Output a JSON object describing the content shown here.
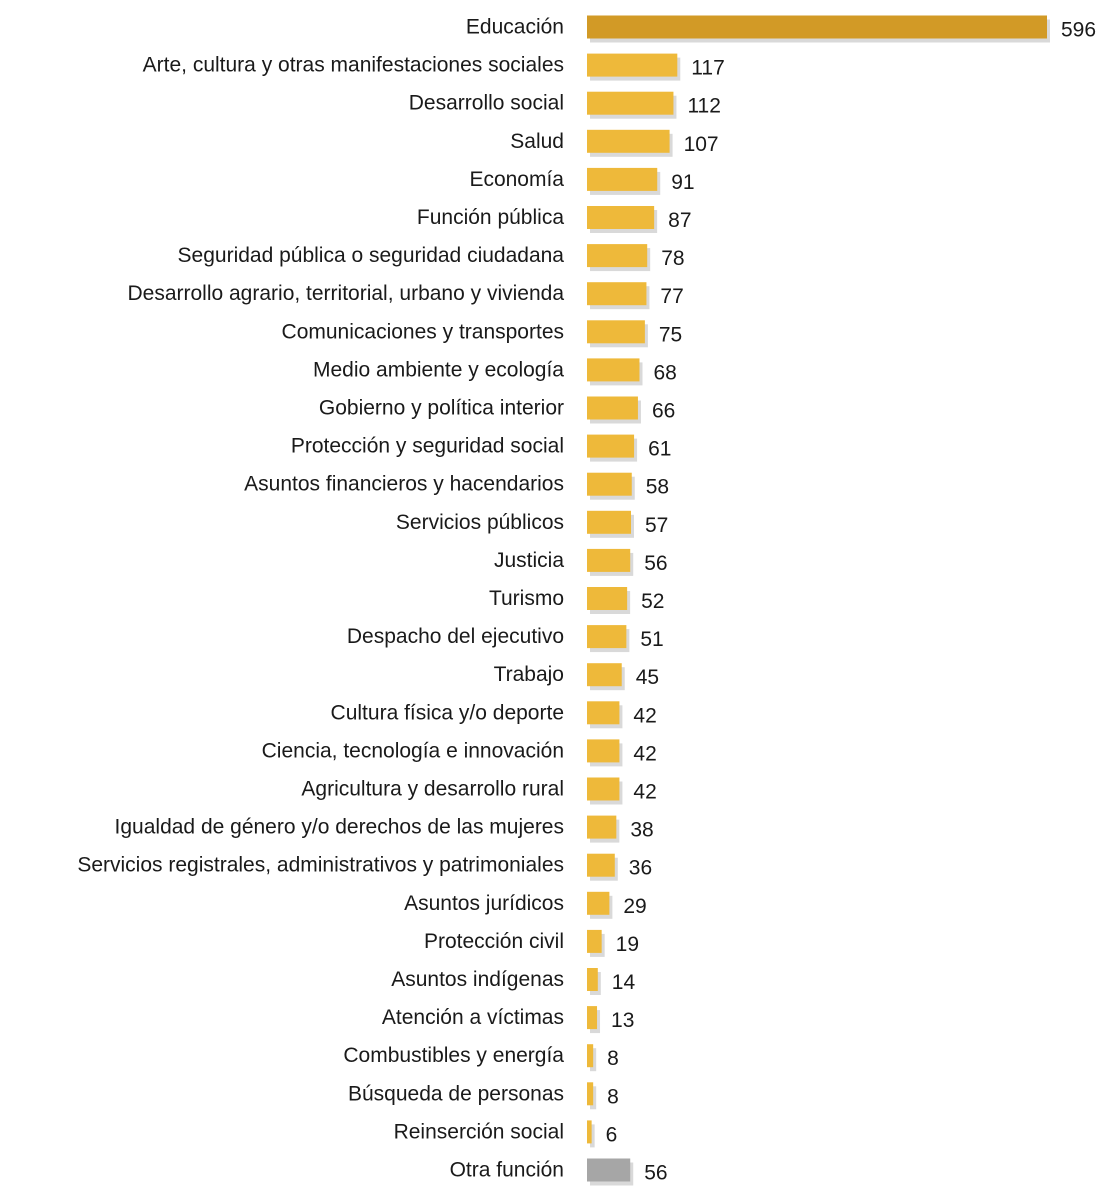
{
  "chart_data": {
    "type": "bar",
    "orientation": "horizontal",
    "categories": [
      "Educación",
      "Arte, cultura y otras manifestaciones sociales",
      "Desarrollo social",
      "Salud",
      "Economía",
      "Función pública",
      "Seguridad pública o seguridad ciudadana",
      "Desarrollo agrario, territorial, urbano y vivienda",
      "Comunicaciones y transportes",
      "Medio ambiente y ecología",
      "Gobierno y política interior",
      "Protección y seguridad social",
      "Asuntos financieros y hacendarios",
      "Servicios públicos",
      "Justicia",
      "Turismo",
      "Despacho del ejecutivo",
      "Trabajo",
      "Cultura física y/o deporte",
      "Ciencia, tecnología e innovación",
      "Agricultura y desarrollo rural",
      "Igualdad de género y/o derechos de las mujeres",
      "Servicios registrales, administrativos y patrimoniales",
      "Asuntos jurídicos",
      "Protección civil",
      "Asuntos indígenas",
      "Atención a víctimas",
      "Combustibles y energía",
      "Búsqueda de personas",
      "Reinserción social",
      "Otra función"
    ],
    "values": [
      596,
      117,
      112,
      107,
      91,
      87,
      78,
      77,
      75,
      68,
      66,
      61,
      58,
      57,
      56,
      52,
      51,
      45,
      42,
      42,
      42,
      38,
      36,
      29,
      19,
      14,
      13,
      8,
      8,
      6,
      56
    ],
    "title": "",
    "xlabel": "",
    "ylabel": "",
    "xlim": [
      0,
      596
    ],
    "grid": false,
    "legend": "none",
    "colors": {
      "highlight": "#D29A26",
      "default": "#EEB93A",
      "other": "#A6A6A6",
      "shadow": "#D9D9D9"
    },
    "highlight_index": 0,
    "other_index": 30
  }
}
